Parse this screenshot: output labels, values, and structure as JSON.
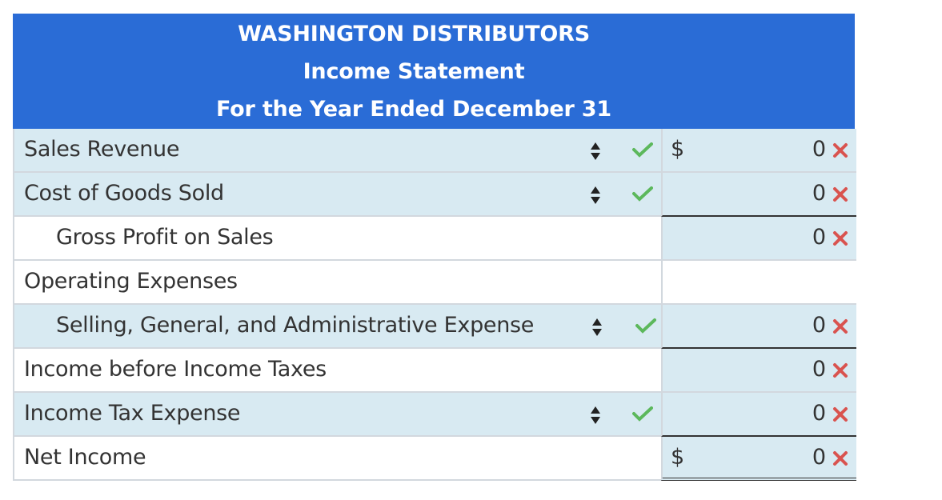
{
  "header": {
    "company": "WASHINGTON DISTRIBUTORS",
    "statement": "Income Statement",
    "period": "For the Year Ended December 31"
  },
  "rows": [
    {
      "label": "Sales Revenue",
      "dollar": "$",
      "amount": "0",
      "status": "incorrect",
      "label_status": "correct"
    },
    {
      "label": "Cost of Goods Sold",
      "dollar": "",
      "amount": "0",
      "status": "incorrect",
      "label_status": "correct"
    },
    {
      "label": "Gross Profit on Sales",
      "dollar": "",
      "amount": "0",
      "status": "incorrect"
    },
    {
      "label": "Operating Expenses",
      "dollar": "",
      "amount": ""
    },
    {
      "label": "Selling, General, and Administrative Expense",
      "dollar": "",
      "amount": "0",
      "status": "incorrect",
      "label_status": "correct"
    },
    {
      "label": "Income before Income Taxes",
      "dollar": "",
      "amount": "0",
      "status": "incorrect"
    },
    {
      "label": "Income Tax Expense",
      "dollar": "",
      "amount": "0",
      "status": "incorrect",
      "label_status": "correct"
    },
    {
      "label": "Net Income",
      "dollar": "$",
      "amount": "0",
      "status": "incorrect"
    }
  ],
  "colors": {
    "header_bg": "#2a6cd6",
    "shaded_cell": "#d8eaf2",
    "check_green": "#5cb85c",
    "x_red": "#d9534f"
  },
  "icons": {
    "select": "updown-arrows-icon",
    "correct": "check-icon",
    "incorrect": "x-icon"
  }
}
